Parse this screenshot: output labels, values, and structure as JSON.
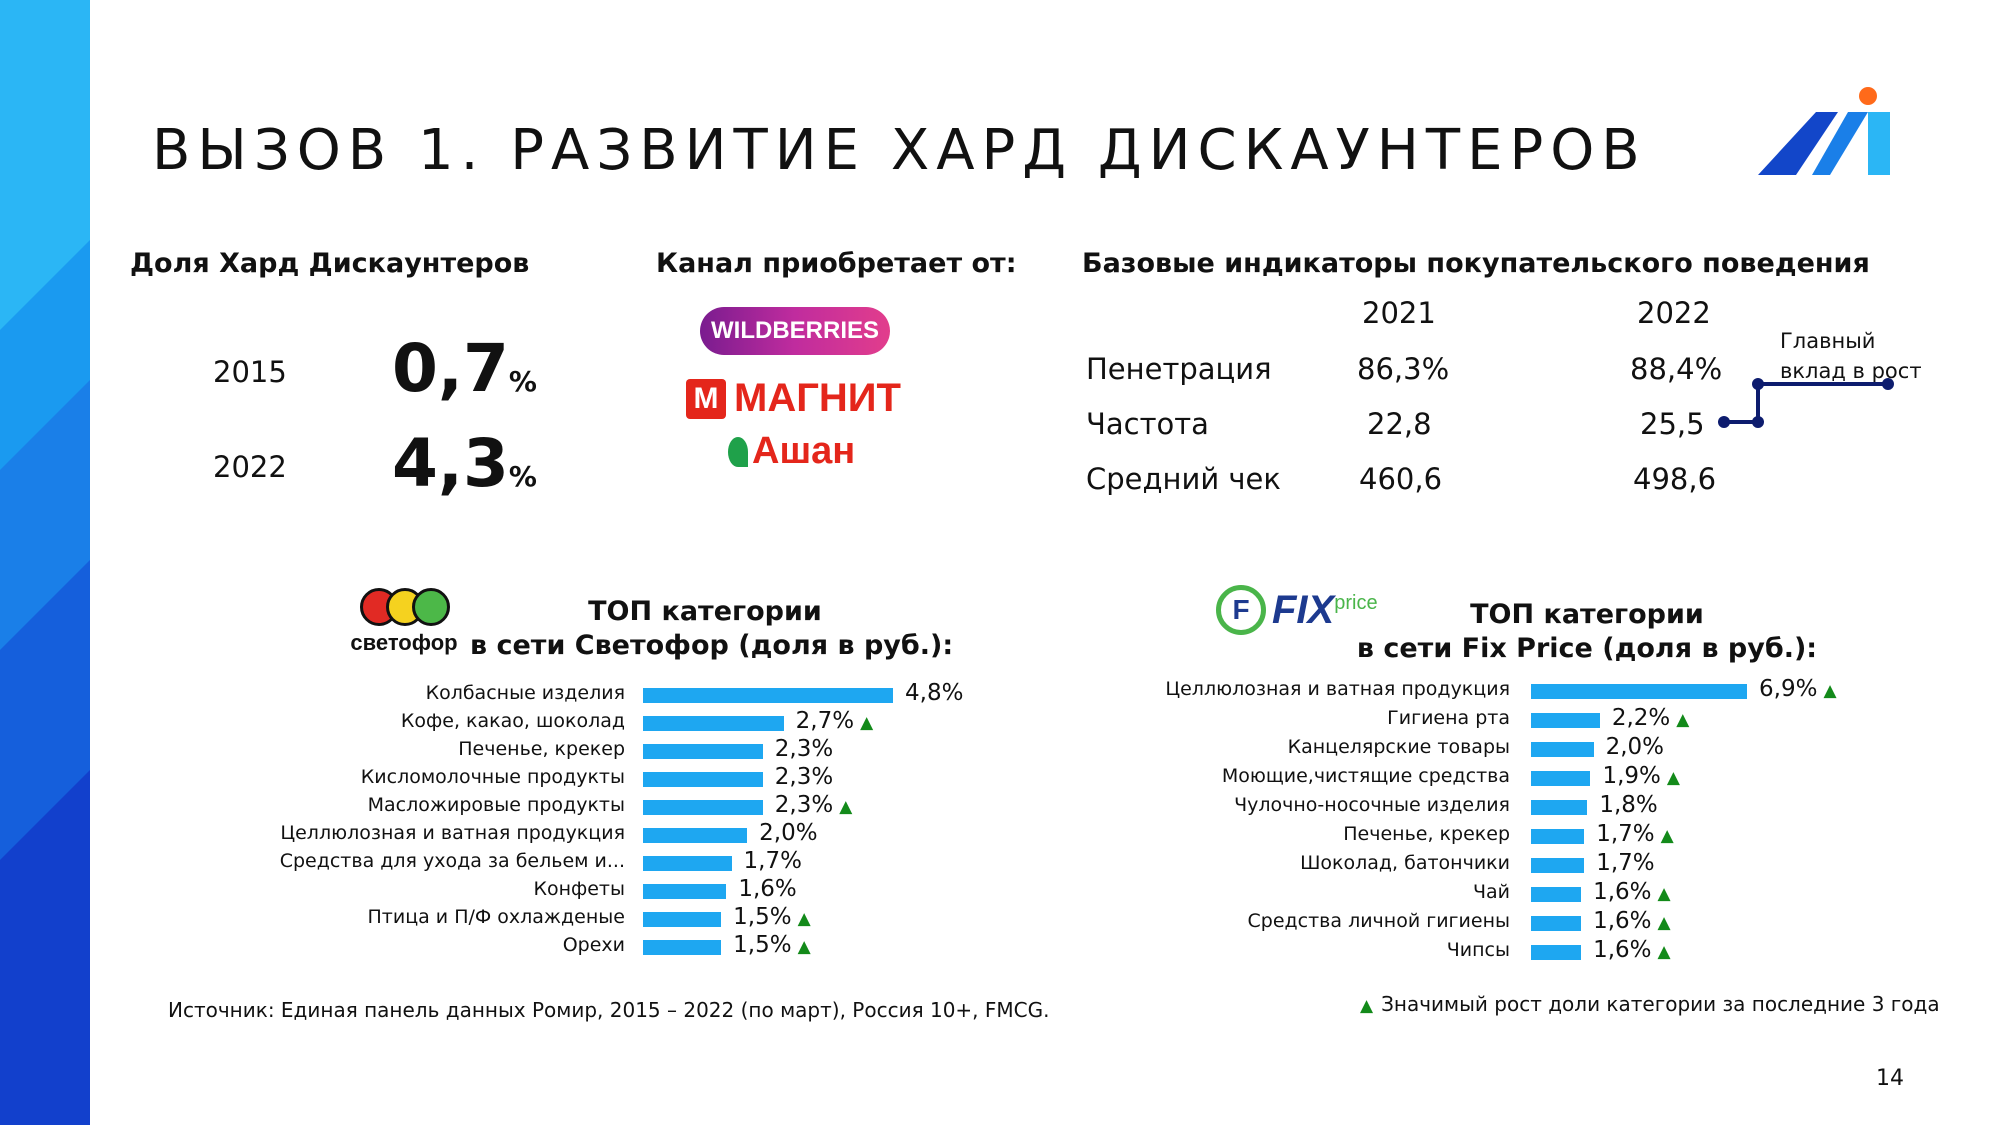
{
  "slide": {
    "title": "ВЫЗОВ 1. РАЗВИТИЕ ХАРД ДИСКАУНТЕРОВ",
    "page_number": "14",
    "colors": {
      "accent_blue": "#1ea7f1",
      "stripe_dark": "#1240cc",
      "stripe_light": "#2bb6f5",
      "growth_green": "#138a1a",
      "indicator_navy": "#0d1c6e"
    }
  },
  "share": {
    "heading": "Доля Хард Дискаунтеров",
    "rows": [
      {
        "year": "2015",
        "value": "0,7",
        "unit": "%"
      },
      {
        "year": "2022",
        "value": "4,3",
        "unit": "%"
      }
    ]
  },
  "channel": {
    "heading": "Канал приобретает от:",
    "logos": [
      {
        "text": "WILDBERRIES",
        "color": "#9b2a9b"
      },
      {
        "text": "МАГНИТ",
        "color": "#e4261b"
      },
      {
        "text": "Ашан",
        "color": "#e4261b"
      }
    ]
  },
  "indicators": {
    "heading": "Базовые индикаторы покупательского поведения",
    "years": [
      "2021",
      "2022"
    ],
    "rows": [
      {
        "label": "Пенетрация",
        "v2021": "86,3%",
        "v2022": "88,4%"
      },
      {
        "label": "Частота",
        "v2021": "22,8",
        "v2022": "25,5"
      },
      {
        "label": "Средний чек",
        "v2021": "460,6",
        "v2022": "498,6"
      }
    ],
    "note": [
      "Главный",
      "вклад в рост"
    ]
  },
  "svetofor": {
    "logo_text": "светофор",
    "title_line1": "ТОП категории",
    "title_line2": "в сети Светофор (доля в руб.):"
  },
  "fixprice": {
    "logo_fix": "FIX",
    "logo_price": "price",
    "title_line1": "ТОП категории",
    "title_line2": "в сети Fix Price (доля в руб.):"
  },
  "chart_data": [
    {
      "type": "bar",
      "orientation": "horizontal",
      "categories": [
        "Колбасные изделия",
        "Кофе, какао, шоколад",
        "Печенье, крекер",
        "Кисломолочные продукты",
        "Масложировые продукты",
        "Целлюлозная и ватная продукция",
        "Средства для ухода за бельем и...",
        "Конфеты",
        "Птица и П/Ф охлажденые",
        "Орехи"
      ],
      "values": [
        4.8,
        2.7,
        2.3,
        2.3,
        2.3,
        2.0,
        1.7,
        1.6,
        1.5,
        1.5
      ],
      "labels": [
        "4,8%",
        "2,7%",
        "2,3%",
        "2,3%",
        "2,3%",
        "2,0%",
        "1,7%",
        "1,6%",
        "1,5%",
        "1,5%"
      ],
      "growth": [
        false,
        true,
        false,
        false,
        true,
        false,
        false,
        false,
        true,
        true
      ]
    },
    {
      "type": "bar",
      "orientation": "horizontal",
      "categories": [
        "Целлюлозная и ватная продукция",
        "Гигиена рта",
        "Канцелярские товары",
        "Моющие,чистящие средства",
        "Чулочно-носочные изделия",
        "Печенье, крекер",
        "Шоколад, батончики",
        "Чай",
        "Средства личной гигиены",
        "Чипсы"
      ],
      "values": [
        6.9,
        2.2,
        2.0,
        1.9,
        1.8,
        1.7,
        1.7,
        1.6,
        1.6,
        1.6
      ],
      "labels": [
        "6,9%",
        "2,2%",
        "2,0%",
        "1,9%",
        "1,8%",
        "1,7%",
        "1,7%",
        "1,6%",
        "1,6%",
        "1,6%"
      ],
      "growth": [
        true,
        true,
        false,
        true,
        false,
        true,
        false,
        true,
        true,
        true
      ]
    }
  ],
  "footer": {
    "source": "Источник: Единая панель данных Ромир, 2015 – 2022 (по март), Россия 10+, FMCG.",
    "legend_marker": "▲",
    "legend": "Значимый рост доли категории за последние 3 года"
  }
}
